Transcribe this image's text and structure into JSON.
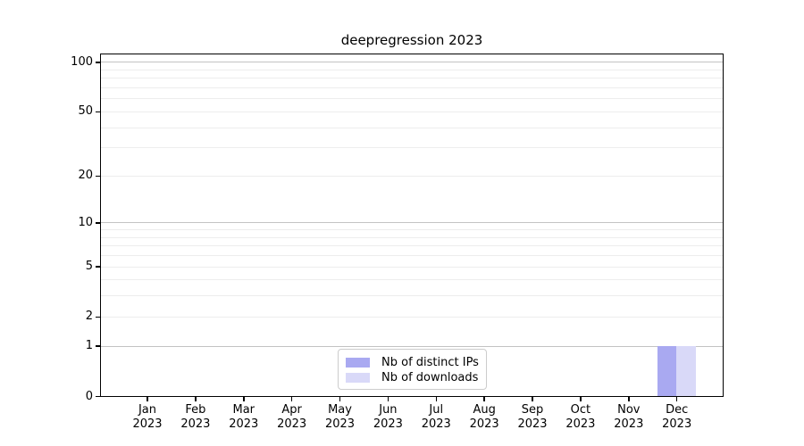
{
  "chart_data": {
    "type": "bar",
    "title": "deepregression 2023",
    "categories": [
      {
        "month": "Jan",
        "year": "2023"
      },
      {
        "month": "Feb",
        "year": "2023"
      },
      {
        "month": "Mar",
        "year": "2023"
      },
      {
        "month": "Apr",
        "year": "2023"
      },
      {
        "month": "May",
        "year": "2023"
      },
      {
        "month": "Jun",
        "year": "2023"
      },
      {
        "month": "Jul",
        "year": "2023"
      },
      {
        "month": "Aug",
        "year": "2023"
      },
      {
        "month": "Sep",
        "year": "2023"
      },
      {
        "month": "Oct",
        "year": "2023"
      },
      {
        "month": "Nov",
        "year": "2023"
      },
      {
        "month": "Dec",
        "year": "2023"
      }
    ],
    "series": [
      {
        "name": "Nb of distinct IPs",
        "color": "#a9a9f1",
        "values": [
          0,
          0,
          0,
          0,
          0,
          0,
          0,
          0,
          0,
          0,
          0,
          1
        ]
      },
      {
        "name": "Nb of downloads",
        "color": "#d9d9f8",
        "values": [
          0,
          0,
          0,
          0,
          0,
          0,
          0,
          0,
          0,
          0,
          0,
          1
        ]
      }
    ],
    "yscale": "log1p",
    "ylim": [
      0,
      113
    ],
    "y_ticks": [
      0,
      1,
      2,
      5,
      10,
      20,
      50,
      100
    ],
    "y_major_gridlines": [
      1,
      10,
      100
    ],
    "y_minor_gridlines": [
      2,
      3,
      4,
      5,
      6,
      7,
      8,
      9,
      20,
      30,
      40,
      50,
      60,
      70,
      80,
      90
    ],
    "grid": true,
    "legend_position": "lower center"
  },
  "colors": {
    "axis": "#000000",
    "major_grid": "#c3c3c3",
    "minor_grid": "#ededed",
    "legend_border": "#cccccc",
    "background": "#ffffff"
  }
}
